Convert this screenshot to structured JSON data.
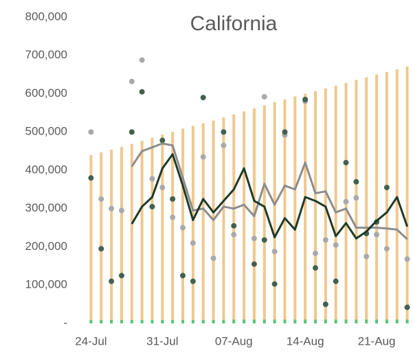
{
  "chart_data": {
    "type": "bar",
    "title": "California",
    "categories": [
      "24-Jul",
      null,
      null,
      null,
      null,
      null,
      null,
      "31-Jul",
      null,
      null,
      null,
      null,
      null,
      null,
      "07-Aug",
      null,
      null,
      null,
      null,
      null,
      null,
      "14-Aug",
      null,
      null,
      null,
      null,
      null,
      null,
      "21-Aug",
      null,
      null,
      null
    ],
    "series": [
      {
        "type": "bar",
        "color": "#f0c88e",
        "values": [
          440000,
          447000,
          454000,
          461000,
          469000,
          477000,
          485000,
          493000,
          501000,
          509000,
          516000,
          523000,
          530000,
          538000,
          546000,
          554000,
          562000,
          570000,
          578000,
          585000,
          593000,
          600000,
          607000,
          614000,
          621000,
          628000,
          636000,
          643000,
          650000,
          657000,
          664000,
          671000
        ]
      },
      {
        "type": "bar",
        "color": "#5cc47a",
        "values": [
          9000,
          9000,
          9000,
          9000,
          9000,
          9000,
          9000,
          9000,
          9000,
          9000,
          9000,
          9000,
          9000,
          9000,
          10000,
          10000,
          10000,
          10000,
          10000,
          10000,
          10000,
          10000,
          10000,
          10000,
          10000,
          10000,
          10000,
          10000,
          10000,
          10000,
          10000,
          10000
        ]
      },
      {
        "type": "scatter",
        "color": "#a9a9a9",
        "values": [
          500000,
          325000,
          300000,
          295000,
          632000,
          688000,
          378000,
          355000,
          277000,
          250000,
          210000,
          435000,
          170000,
          465000,
          232000,
          null,
          222000,
          592000,
          188000,
          492000,
          null,
          580000,
          183000,
          218000,
          205000,
          318000,
          328000,
          175000,
          232000,
          195000,
          null,
          168000
        ]
      },
      {
        "type": "scatter",
        "color": "#44604f",
        "values": [
          380000,
          195000,
          110000,
          125000,
          500000,
          605000,
          305000,
          478000,
          325000,
          125000,
          110000,
          590000,
          null,
          500000,
          255000,
          null,
          155000,
          218000,
          103000,
          500000,
          null,
          585000,
          145000,
          50000,
          110000,
          420000,
          370000,
          235000,
          265000,
          355000,
          null,
          42000
        ]
      },
      {
        "type": "line",
        "color": "#8c8c8c",
        "values": [
          null,
          null,
          null,
          null,
          410000,
          450000,
          460000,
          470000,
          465000,
          380000,
          295000,
          300000,
          270000,
          305000,
          300000,
          310000,
          280000,
          365000,
          310000,
          360000,
          350000,
          420000,
          340000,
          345000,
          290000,
          300000,
          250000,
          250000,
          250000,
          248000,
          245000,
          220000
        ]
      },
      {
        "type": "line",
        "color": "#1e3a26",
        "values": [
          null,
          null,
          null,
          null,
          260000,
          305000,
          330000,
          405000,
          442000,
          360000,
          270000,
          325000,
          290000,
          320000,
          350000,
          405000,
          320000,
          305000,
          225000,
          275000,
          245000,
          330000,
          320000,
          305000,
          228000,
          262000,
          222000,
          240000,
          268000,
          290000,
          330000,
          253000
        ]
      }
    ],
    "ylim": [
      0,
      800000
    ],
    "yticks": [
      {
        "value": 0,
        "label": "-"
      },
      {
        "value": 100000,
        "label": "100,000"
      },
      {
        "value": 200000,
        "label": "200,000"
      },
      {
        "value": 300000,
        "label": "300,000"
      },
      {
        "value": 400000,
        "label": "400,000"
      },
      {
        "value": 500000,
        "label": "500,000"
      },
      {
        "value": 600000,
        "label": "600,000"
      },
      {
        "value": 700000,
        "label": "700,000"
      },
      {
        "value": 800000,
        "label": "800,000"
      }
    ],
    "grid": false
  }
}
